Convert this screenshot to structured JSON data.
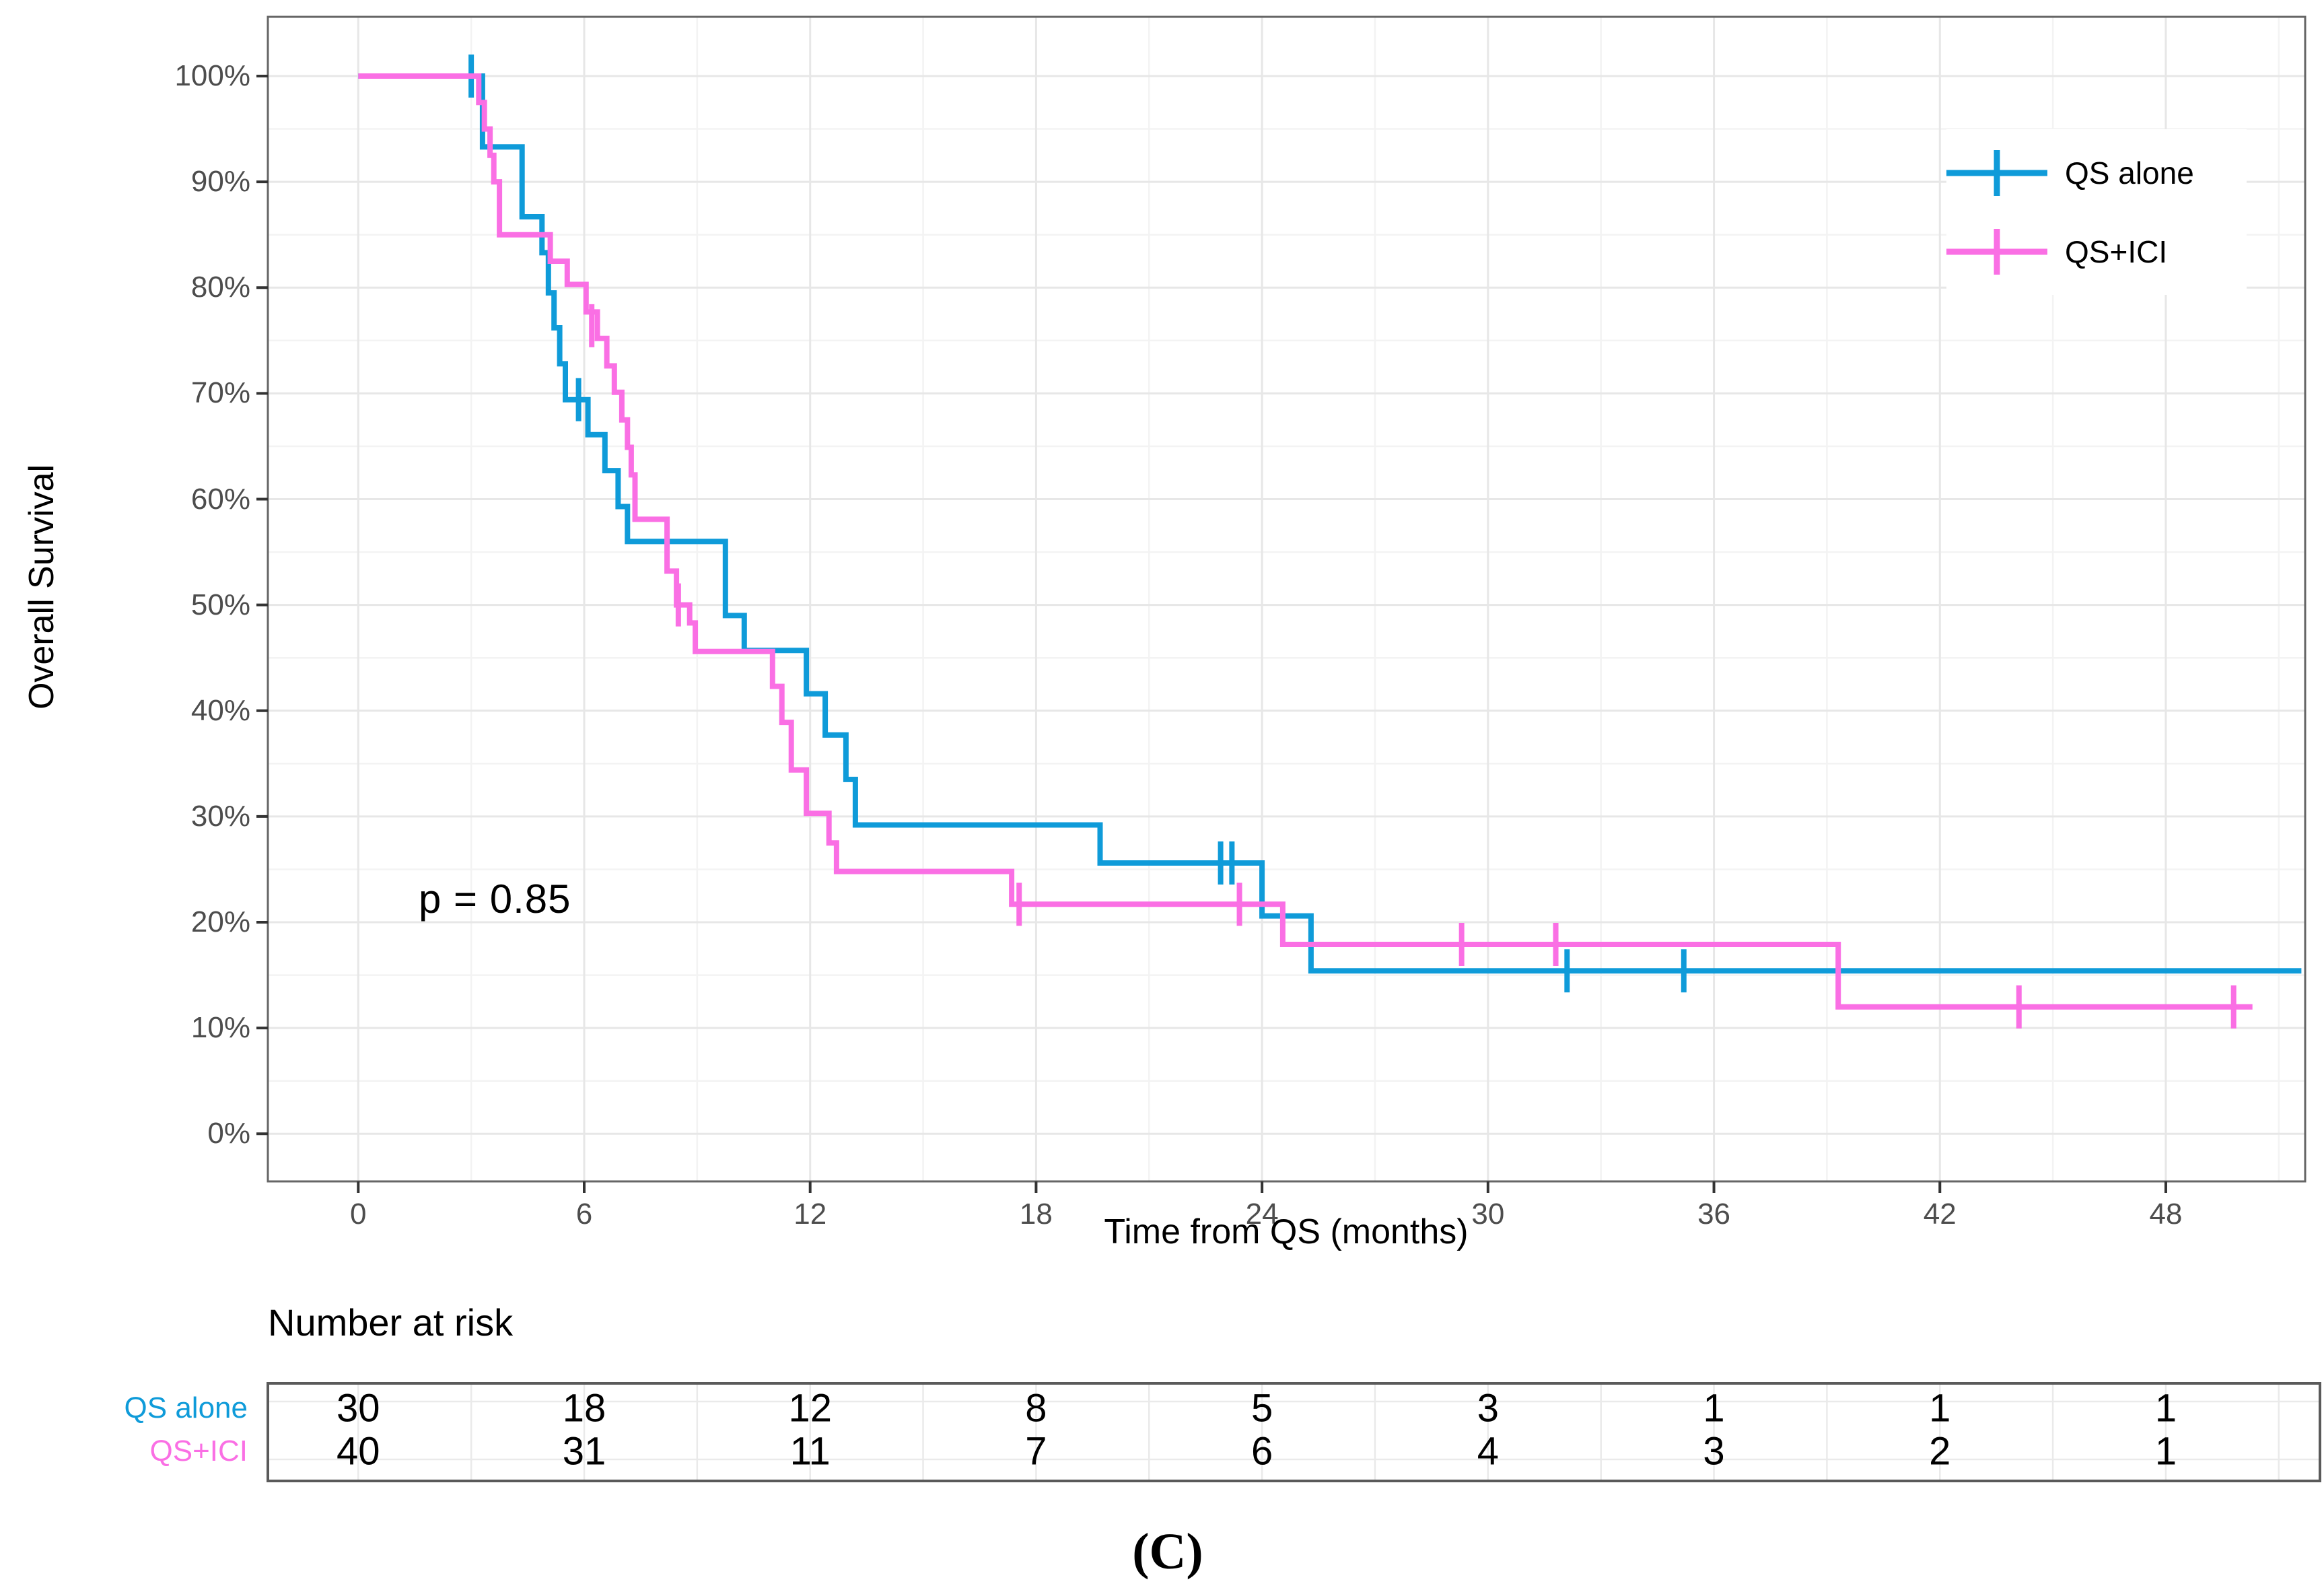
{
  "chart_data": {
    "type": "km_step",
    "title": "",
    "xlabel": "Time from QS (months)",
    "ylabel": "Overall Survival",
    "x_ticks": [
      0,
      6,
      12,
      18,
      24,
      30,
      36,
      42,
      48
    ],
    "x_minor_ticks": [
      3,
      9,
      15,
      21,
      27,
      33,
      39,
      45,
      51
    ],
    "y_ticks": [
      0,
      10,
      20,
      30,
      40,
      50,
      60,
      70,
      80,
      90,
      100
    ],
    "y_minor_ticks": [
      5,
      15,
      25,
      35,
      45,
      55,
      65,
      75,
      85,
      95
    ],
    "y_tick_suffix": "%",
    "x_range": [
      -2.4,
      51.7
    ],
    "y_range": [
      -4.5,
      105.6
    ],
    "grid": true,
    "annotation": {
      "text": "p = 0.85"
    },
    "legend": {
      "position": "top-right-inside",
      "entries": [
        {
          "label": "QS alone",
          "color": "#0F9BD9"
        },
        {
          "label": "QS+ICI",
          "color": "#FA6FE4"
        }
      ]
    },
    "series": [
      {
        "name": "QS alone",
        "color": "#0F9BD9",
        "points": [
          [
            0,
            100
          ],
          [
            3.3,
            93.3
          ],
          [
            4.35,
            86.7
          ],
          [
            4.88,
            83.3
          ],
          [
            5.05,
            79.5
          ],
          [
            5.2,
            76.2
          ],
          [
            5.35,
            72.8
          ],
          [
            5.5,
            69.4
          ],
          [
            6.1,
            66.1
          ],
          [
            6.55,
            62.7
          ],
          [
            6.9,
            59.3
          ],
          [
            7.15,
            56.0
          ],
          [
            9.75,
            49.0
          ],
          [
            10.25,
            45.7
          ],
          [
            11.9,
            41.6
          ],
          [
            12.4,
            37.7
          ],
          [
            12.95,
            33.5
          ],
          [
            13.2,
            29.2
          ],
          [
            19.7,
            25.6
          ],
          [
            24.0,
            20.6
          ],
          [
            25.3,
            15.4
          ]
        ],
        "end_time": 51.6,
        "censors": [
          [
            3.0,
            100
          ],
          [
            5.85,
            69.4
          ],
          [
            22.9,
            25.6
          ],
          [
            23.2,
            25.6
          ],
          [
            32.1,
            15.4
          ],
          [
            35.2,
            15.4
          ]
        ]
      },
      {
        "name": "QS+ICI",
        "color": "#FA6FE4",
        "points": [
          [
            0,
            100
          ],
          [
            3.2,
            97.5
          ],
          [
            3.35,
            95.0
          ],
          [
            3.5,
            92.5
          ],
          [
            3.6,
            90.0
          ],
          [
            3.75,
            85.0
          ],
          [
            5.1,
            82.5
          ],
          [
            5.55,
            80.3
          ],
          [
            6.05,
            77.7
          ],
          [
            6.35,
            75.2
          ],
          [
            6.6,
            72.6
          ],
          [
            6.8,
            70.1
          ],
          [
            7.0,
            67.5
          ],
          [
            7.15,
            64.9
          ],
          [
            7.25,
            62.3
          ],
          [
            7.35,
            58.1
          ],
          [
            8.2,
            53.2
          ],
          [
            8.45,
            50.0
          ],
          [
            8.8,
            48.3
          ],
          [
            8.95,
            45.6
          ],
          [
            11.0,
            42.3
          ],
          [
            11.25,
            38.9
          ],
          [
            11.5,
            34.4
          ],
          [
            11.9,
            30.3
          ],
          [
            12.5,
            27.5
          ],
          [
            12.7,
            24.8
          ],
          [
            17.35,
            21.7
          ],
          [
            24.55,
            17.9
          ],
          [
            39.3,
            12.0
          ]
        ],
        "end_time": 50.3,
        "censors": [
          [
            6.2,
            76.4
          ],
          [
            8.5,
            50.0
          ],
          [
            17.55,
            21.7
          ],
          [
            23.4,
            21.7
          ],
          [
            29.3,
            17.9
          ],
          [
            31.8,
            17.9
          ],
          [
            44.1,
            12.0
          ],
          [
            49.8,
            12.0
          ]
        ]
      }
    ],
    "risk_table": {
      "title": "Number at risk",
      "times": [
        0,
        6,
        12,
        18,
        24,
        30,
        36,
        42,
        48
      ],
      "rows": [
        {
          "label": "QS alone",
          "color": "#0F9BD9",
          "values": [
            30,
            18,
            12,
            8,
            5,
            3,
            1,
            1,
            1
          ]
        },
        {
          "label": "QS+ICI",
          "color": "#FA6FE4",
          "values": [
            40,
            31,
            11,
            7,
            6,
            4,
            3,
            2,
            1
          ]
        }
      ]
    },
    "caption": "(C)",
    "colors": {
      "grid_major": "#E7E7E7",
      "grid_minor": "#F3F3F3",
      "panel_border": "#666666",
      "axis_tick": "#333333",
      "tick_label": "#4d4d4d"
    }
  }
}
